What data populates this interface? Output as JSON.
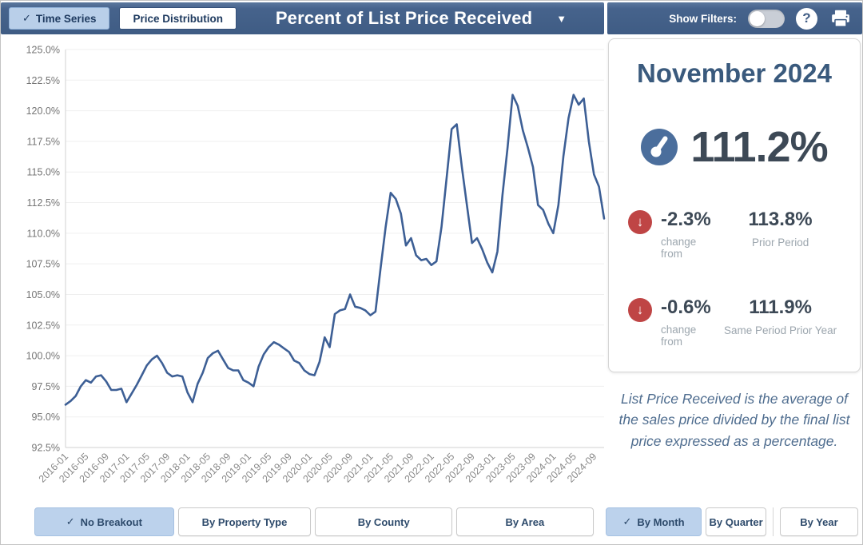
{
  "icons": {
    "check": "✓",
    "caret_down": "▼",
    "down_arrow": "↓",
    "help": "?"
  },
  "colors": {
    "topbar_blue": "#3f5c84",
    "active_button_blue": "#bcd2ec",
    "line_blue": "#3d5f95",
    "gauge_icon_blue": "#4b6e9c",
    "alert_red": "#bf4545",
    "value_slate": "#3d4956",
    "heading_blue": "#3a5a7d",
    "muted_gray": "#9ca6ae"
  },
  "toolbar": {
    "buttons": [
      {
        "label": "Time Series",
        "active": true
      },
      {
        "label": "Price Distribution",
        "active": false
      }
    ],
    "title": "Percent of List Price Received",
    "show_filters_label": "Show Filters:",
    "show_filters_on": false,
    "help_label": "?"
  },
  "summary": {
    "period_label": "November 2024",
    "current_value": "111.2%",
    "rows": [
      {
        "change": "-2.3%",
        "change_label": "change from",
        "value": "113.8%",
        "value_label": "Prior Period"
      },
      {
        "change": "-0.6%",
        "change_label": "change from",
        "value": "111.9%",
        "value_label": "Same Period Prior Year"
      }
    ],
    "description": "List Price Received is the average of the sales price divided by the final list price expressed as a percentage."
  },
  "breakout": {
    "buttons": [
      {
        "label": "No Breakout",
        "active": true
      },
      {
        "label": "By Property Type",
        "active": false
      },
      {
        "label": "By County",
        "active": false
      },
      {
        "label": "By Area",
        "active": false
      },
      {
        "label": "By Month",
        "active": true
      },
      {
        "label": "By Quarter",
        "active": false
      },
      {
        "label": "By Year",
        "active": false
      }
    ]
  },
  "chart_data": {
    "type": "line",
    "series_name": "Percent of List Price Received",
    "x_unit": "month",
    "x_range": [
      "2016-01",
      "2024-11"
    ],
    "tick_every": 4,
    "tick_labels": [
      "2016-01",
      "2016-05",
      "2016-09",
      "2017-01",
      "2017-05",
      "2017-09",
      "2018-01",
      "2018-05",
      "2018-09",
      "2019-01",
      "2019-05",
      "2019-09",
      "2020-01",
      "2020-05",
      "2020-09",
      "2021-01",
      "2021-05",
      "2021-09",
      "2022-01",
      "2022-05",
      "2022-09",
      "2023-01",
      "2023-05",
      "2023-09",
      "2024-01",
      "2024-05",
      "2024-09"
    ],
    "values": [
      96.0,
      96.3,
      96.7,
      97.5,
      98.0,
      97.8,
      98.3,
      98.4,
      97.9,
      97.2,
      97.2,
      97.3,
      96.2,
      96.9,
      97.6,
      98.4,
      99.2,
      99.7,
      100.0,
      99.4,
      98.6,
      98.3,
      98.4,
      98.3,
      97.0,
      96.2,
      97.7,
      98.6,
      99.8,
      100.2,
      100.4,
      99.7,
      99.0,
      98.8,
      98.8,
      98.0,
      97.8,
      97.5,
      99.1,
      100.1,
      100.7,
      101.1,
      100.9,
      100.6,
      100.3,
      99.6,
      99.4,
      98.8,
      98.5,
      98.4,
      99.5,
      101.5,
      100.7,
      103.4,
      103.7,
      103.8,
      105.0,
      104.0,
      103.9,
      103.7,
      103.3,
      103.6,
      107.1,
      110.5,
      113.3,
      112.8,
      111.6,
      109.0,
      109.6,
      108.2,
      107.8,
      107.9,
      107.4,
      107.7,
      110.5,
      114.5,
      118.5,
      118.9,
      115.4,
      112.3,
      109.2,
      109.6,
      108.7,
      107.6,
      106.8,
      108.5,
      113.1,
      117.0,
      121.3,
      120.4,
      118.4,
      117.0,
      115.4,
      112.3,
      111.9,
      110.8,
      110.0,
      112.3,
      116.3,
      119.4,
      121.3,
      120.5,
      121.0,
      117.5,
      114.8,
      113.8,
      111.2
    ],
    "ylim": [
      92.5,
      125.0
    ],
    "ytick_step": 2.5,
    "y_tick_format": "0.0%",
    "grid": true,
    "legend": "none"
  }
}
